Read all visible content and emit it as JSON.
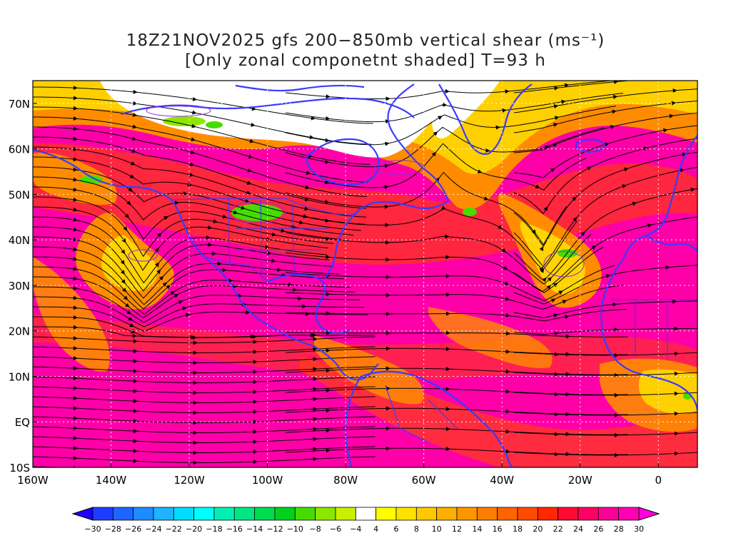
{
  "title": {
    "line1": "18Z21NOV2025 gfs 200−850mb vertical shear (ms⁻¹)",
    "line2": "[Only zonal componetnt shaded] T=93 h"
  },
  "map": {
    "lon_range": [
      -160,
      10
    ],
    "lat_range": [
      -10,
      75
    ],
    "lon_ticks": [
      {
        "value": -160,
        "label": "160W"
      },
      {
        "value": -140,
        "label": "140W"
      },
      {
        "value": -120,
        "label": "120W"
      },
      {
        "value": -100,
        "label": "100W"
      },
      {
        "value": -80,
        "label": "80W"
      },
      {
        "value": -60,
        "label": "60W"
      },
      {
        "value": -40,
        "label": "40W"
      },
      {
        "value": -20,
        "label": "20W"
      },
      {
        "value": 0,
        "label": "0"
      }
    ],
    "lat_ticks": [
      {
        "value": 70,
        "label": "70N"
      },
      {
        "value": 60,
        "label": "60N"
      },
      {
        "value": 50,
        "label": "50N"
      },
      {
        "value": 40,
        "label": "40N"
      },
      {
        "value": 30,
        "label": "30N"
      },
      {
        "value": 20,
        "label": "20N"
      },
      {
        "value": 10,
        "label": "10N"
      },
      {
        "value": 0,
        "label": "EQ"
      },
      {
        "value": -10,
        "label": "10S"
      }
    ],
    "gridlines": "dotted",
    "streamlines": "on",
    "coastline_color": "#3a3aff"
  },
  "colorbar": {
    "labels": [
      "−30",
      "−28",
      "−26",
      "−24",
      "−22",
      "−20",
      "−18",
      "−16",
      "−14",
      "−12",
      "−10",
      "−8",
      "−6",
      "−4",
      "4",
      "6",
      "8",
      "10",
      "12",
      "14",
      "16",
      "18",
      "20",
      "22",
      "24",
      "26",
      "28",
      "30"
    ],
    "colors": [
      "#1e00ff",
      "#1e3cff",
      "#1e64ff",
      "#1e8cff",
      "#1eb4ff",
      "#00dcff",
      "#00ffff",
      "#00f0b4",
      "#00e682",
      "#00dc50",
      "#00d21e",
      "#46dc00",
      "#8ce600",
      "#c8f000",
      "#ffffff",
      "#ffff00",
      "#ffe100",
      "#ffc800",
      "#ffaf00",
      "#ff9600",
      "#ff7d00",
      "#ff6400",
      "#ff4b00",
      "#ff2800",
      "#ff0a32",
      "#ff0064",
      "#ff0096",
      "#ff00b4",
      "#ff00dc"
    ]
  }
}
